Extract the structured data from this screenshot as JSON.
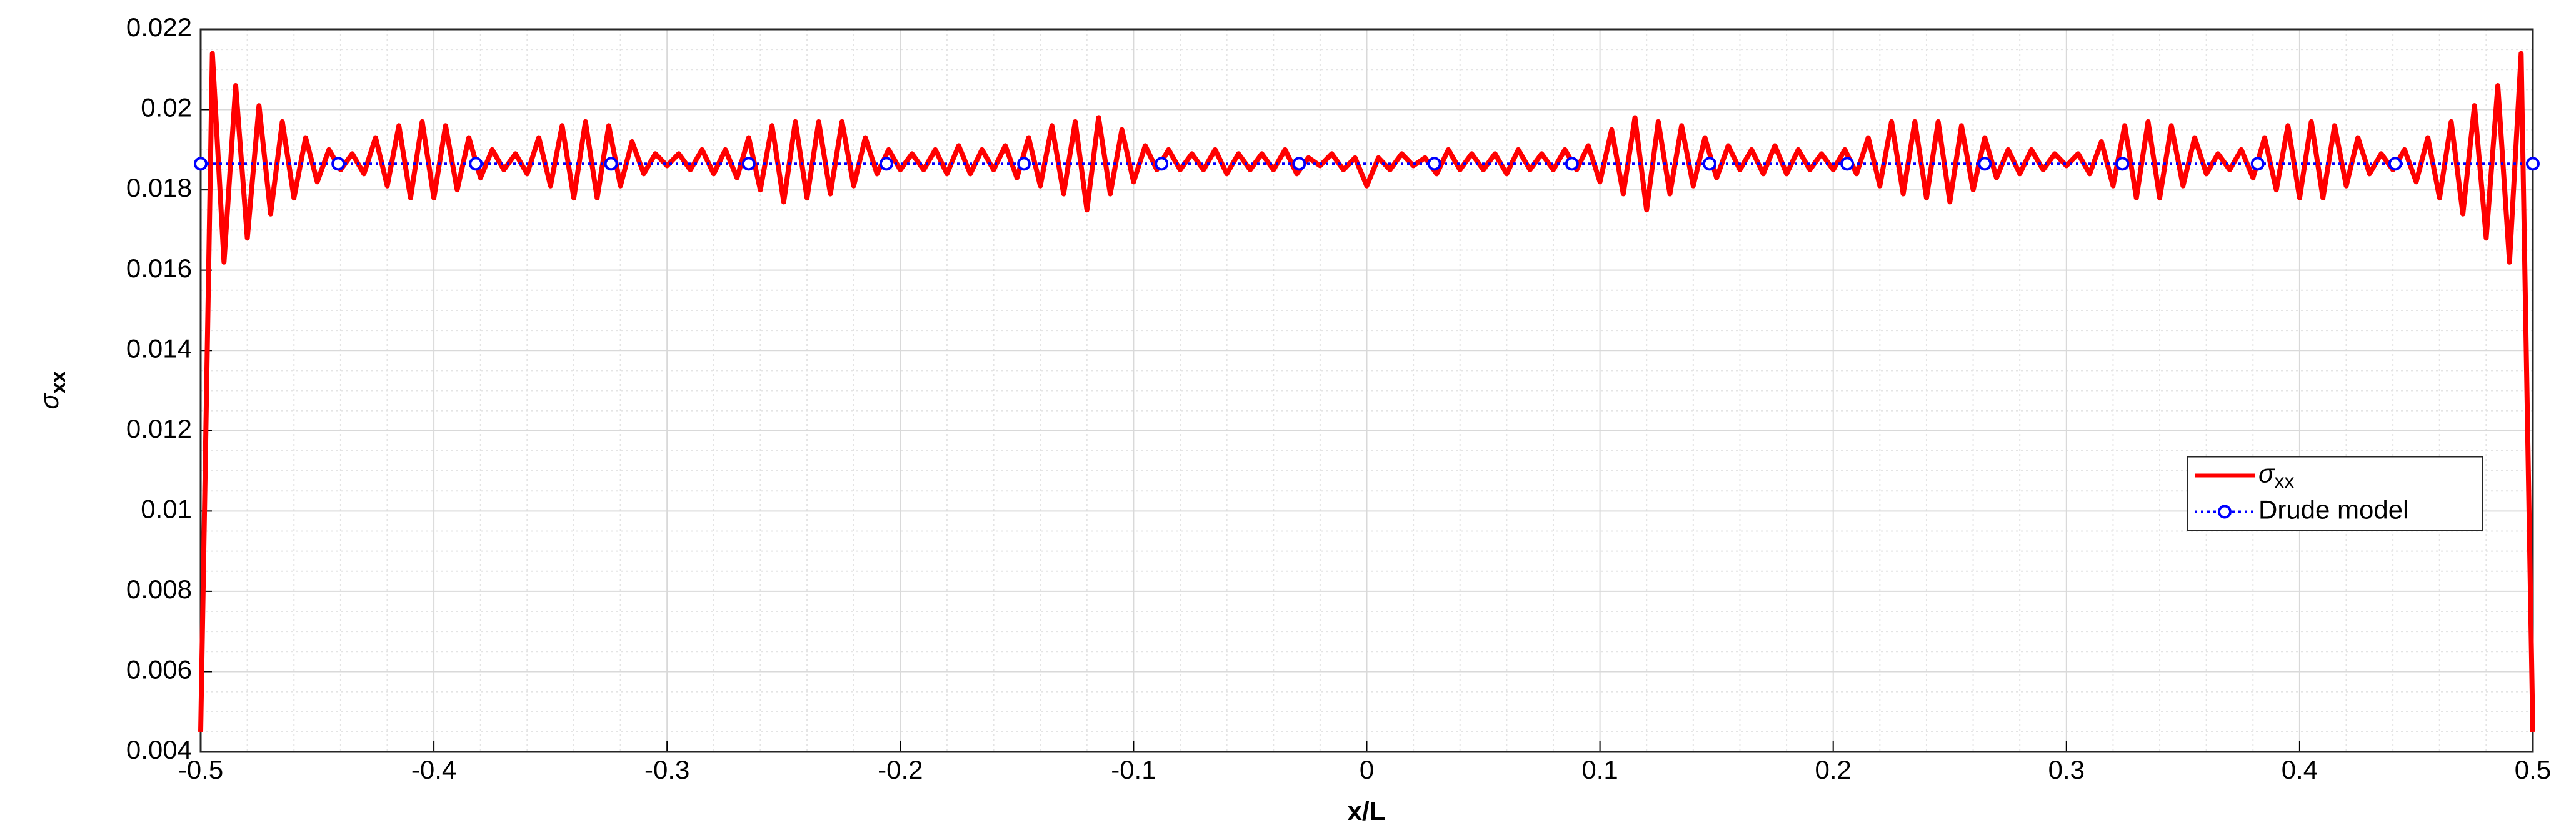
{
  "chart_data": {
    "type": "line",
    "xlabel": "x/L",
    "ylabel": {
      "base": "σ",
      "sub": "xx"
    },
    "xlim": [
      -0.5,
      0.5
    ],
    "xticks": [
      -0.5,
      -0.4,
      -0.3,
      -0.2,
      -0.1,
      0,
      0.1,
      0.2,
      0.3,
      0.4,
      0.5
    ],
    "ylim": [
      0.004,
      0.022
    ],
    "yticks": [
      0.004,
      0.006,
      0.008,
      0.01,
      0.012,
      0.014,
      0.016,
      0.018,
      0.02,
      0.022
    ],
    "grid": true,
    "minor_grid": true,
    "legend": "right",
    "series": [
      {
        "name": {
          "base": "σ",
          "sub": "xx"
        },
        "color": "#ff0000",
        "style": "solid",
        "x": [
          -0.5,
          -0.495,
          -0.49,
          -0.485,
          -0.48,
          -0.475,
          -0.47,
          -0.465,
          -0.46,
          -0.455,
          -0.45,
          -0.445,
          -0.44,
          -0.435,
          -0.43,
          -0.425,
          -0.42,
          -0.415,
          -0.41,
          -0.405,
          -0.4,
          -0.395,
          -0.39,
          -0.385,
          -0.38,
          -0.375,
          -0.37,
          -0.365,
          -0.36,
          -0.355,
          -0.35,
          -0.345,
          -0.34,
          -0.335,
          -0.33,
          -0.325,
          -0.32,
          -0.315,
          -0.31,
          -0.305,
          -0.3,
          -0.295,
          -0.29,
          -0.285,
          -0.28,
          -0.275,
          -0.27,
          -0.265,
          -0.26,
          -0.255,
          -0.25,
          -0.245,
          -0.24,
          -0.235,
          -0.23,
          -0.225,
          -0.22,
          -0.215,
          -0.21,
          -0.205,
          -0.2,
          -0.195,
          -0.19,
          -0.185,
          -0.18,
          -0.175,
          -0.17,
          -0.165,
          -0.16,
          -0.155,
          -0.15,
          -0.145,
          -0.14,
          -0.135,
          -0.13,
          -0.125,
          -0.12,
          -0.115,
          -0.11,
          -0.105,
          -0.1,
          -0.095,
          -0.09,
          -0.085,
          -0.08,
          -0.075,
          -0.07,
          -0.065,
          -0.06,
          -0.055,
          -0.05,
          -0.045,
          -0.04,
          -0.035,
          -0.03,
          -0.025,
          -0.02,
          -0.015,
          -0.01,
          -0.005,
          0,
          0.005,
          0.01,
          0.015,
          0.02,
          0.025,
          0.03,
          0.035,
          0.04,
          0.045,
          0.05,
          0.055,
          0.06,
          0.065,
          0.07,
          0.075,
          0.08,
          0.085,
          0.09,
          0.095,
          0.1,
          0.105,
          0.11,
          0.115,
          0.12,
          0.125,
          0.13,
          0.135,
          0.14,
          0.145,
          0.15,
          0.155,
          0.16,
          0.165,
          0.17,
          0.175,
          0.18,
          0.185,
          0.19,
          0.195,
          0.2,
          0.205,
          0.21,
          0.215,
          0.22,
          0.225,
          0.23,
          0.235,
          0.24,
          0.245,
          0.25,
          0.255,
          0.26,
          0.265,
          0.27,
          0.275,
          0.28,
          0.285,
          0.29,
          0.295,
          0.3,
          0.305,
          0.31,
          0.315,
          0.32,
          0.325,
          0.33,
          0.335,
          0.34,
          0.345,
          0.35,
          0.355,
          0.36,
          0.365,
          0.37,
          0.375,
          0.38,
          0.385,
          0.39,
          0.395,
          0.4,
          0.405,
          0.41,
          0.415,
          0.42,
          0.425,
          0.43,
          0.435,
          0.44,
          0.445,
          0.45,
          0.455,
          0.46,
          0.465,
          0.47,
          0.475,
          0.48,
          0.485,
          0.49,
          0.495,
          0.5
        ],
        "values": [
          0.0045,
          0.0214,
          0.0162,
          0.0206,
          0.0168,
          0.0201,
          0.0174,
          0.0197,
          0.0178,
          0.0193,
          0.0182,
          0.019,
          0.0185,
          0.0189,
          0.0184,
          0.0193,
          0.0181,
          0.0196,
          0.0178,
          0.0197,
          0.0178,
          0.0196,
          0.018,
          0.0193,
          0.0183,
          0.019,
          0.0185,
          0.0189,
          0.0184,
          0.0193,
          0.0181,
          0.0196,
          0.0178,
          0.0197,
          0.0178,
          0.0196,
          0.0181,
          0.0192,
          0.0184,
          0.0189,
          0.0186,
          0.0189,
          0.0185,
          0.019,
          0.0184,
          0.019,
          0.0183,
          0.0193,
          0.018,
          0.0196,
          0.0177,
          0.0197,
          0.0178,
          0.0197,
          0.0179,
          0.0197,
          0.0181,
          0.0193,
          0.0184,
          0.019,
          0.0185,
          0.0189,
          0.0185,
          0.019,
          0.0184,
          0.0191,
          0.0184,
          0.019,
          0.0185,
          0.0191,
          0.0183,
          0.0193,
          0.0181,
          0.0196,
          0.0179,
          0.0197,
          0.0175,
          0.0198,
          0.0179,
          0.0195,
          0.0182,
          0.0191,
          0.0185,
          0.019,
          0.0185,
          0.0189,
          0.0185,
          0.019,
          0.0184,
          0.0189,
          0.0185,
          0.0189,
          0.0185,
          0.019,
          0.0184,
          0.0188,
          0.0186,
          0.0189,
          0.0185,
          0.0188,
          0.0181,
          0.0188,
          0.0185,
          0.0189,
          0.0186,
          0.0188,
          0.0184,
          0.019,
          0.0185,
          0.0189,
          0.0185,
          0.0189,
          0.0184,
          0.019,
          0.0185,
          0.0189,
          0.0185,
          0.019,
          0.0185,
          0.0191,
          0.0182,
          0.0195,
          0.0179,
          0.0198,
          0.0175,
          0.0197,
          0.0179,
          0.0196,
          0.0181,
          0.0193,
          0.0183,
          0.0191,
          0.0185,
          0.019,
          0.0184,
          0.0191,
          0.0184,
          0.019,
          0.0185,
          0.0189,
          0.0185,
          0.019,
          0.0184,
          0.0193,
          0.0181,
          0.0197,
          0.0179,
          0.0197,
          0.0178,
          0.0197,
          0.0177,
          0.0196,
          0.018,
          0.0193,
          0.0183,
          0.019,
          0.0184,
          0.019,
          0.0185,
          0.0189,
          0.0186,
          0.0189,
          0.0184,
          0.0192,
          0.0181,
          0.0196,
          0.0178,
          0.0197,
          0.0178,
          0.0196,
          0.0181,
          0.0193,
          0.0184,
          0.0189,
          0.0185,
          0.019,
          0.0183,
          0.0193,
          0.018,
          0.0196,
          0.0178,
          0.0197,
          0.0178,
          0.0196,
          0.0181,
          0.0193,
          0.0184,
          0.0189,
          0.0185,
          0.019,
          0.0182,
          0.0193,
          0.0178,
          0.0197,
          0.0174,
          0.0201,
          0.0168,
          0.0206,
          0.0162,
          0.0214,
          0.0045
        ]
      },
      {
        "name": "Drude model",
        "color": "#0000ff",
        "style": "dotted",
        "marker": "circle",
        "x": [
          -0.5,
          -0.441,
          -0.382,
          -0.324,
          -0.265,
          -0.206,
          -0.147,
          -0.088,
          -0.029,
          0.029,
          0.088,
          0.147,
          0.206,
          0.265,
          0.324,
          0.382,
          0.441,
          0.5
        ],
        "values": [
          0.01865,
          0.01865,
          0.01865,
          0.01865,
          0.01865,
          0.01865,
          0.01865,
          0.01865,
          0.01865,
          0.01865,
          0.01865,
          0.01865,
          0.01865,
          0.01865,
          0.01865,
          0.01865,
          0.01865,
          0.01865
        ]
      }
    ]
  }
}
